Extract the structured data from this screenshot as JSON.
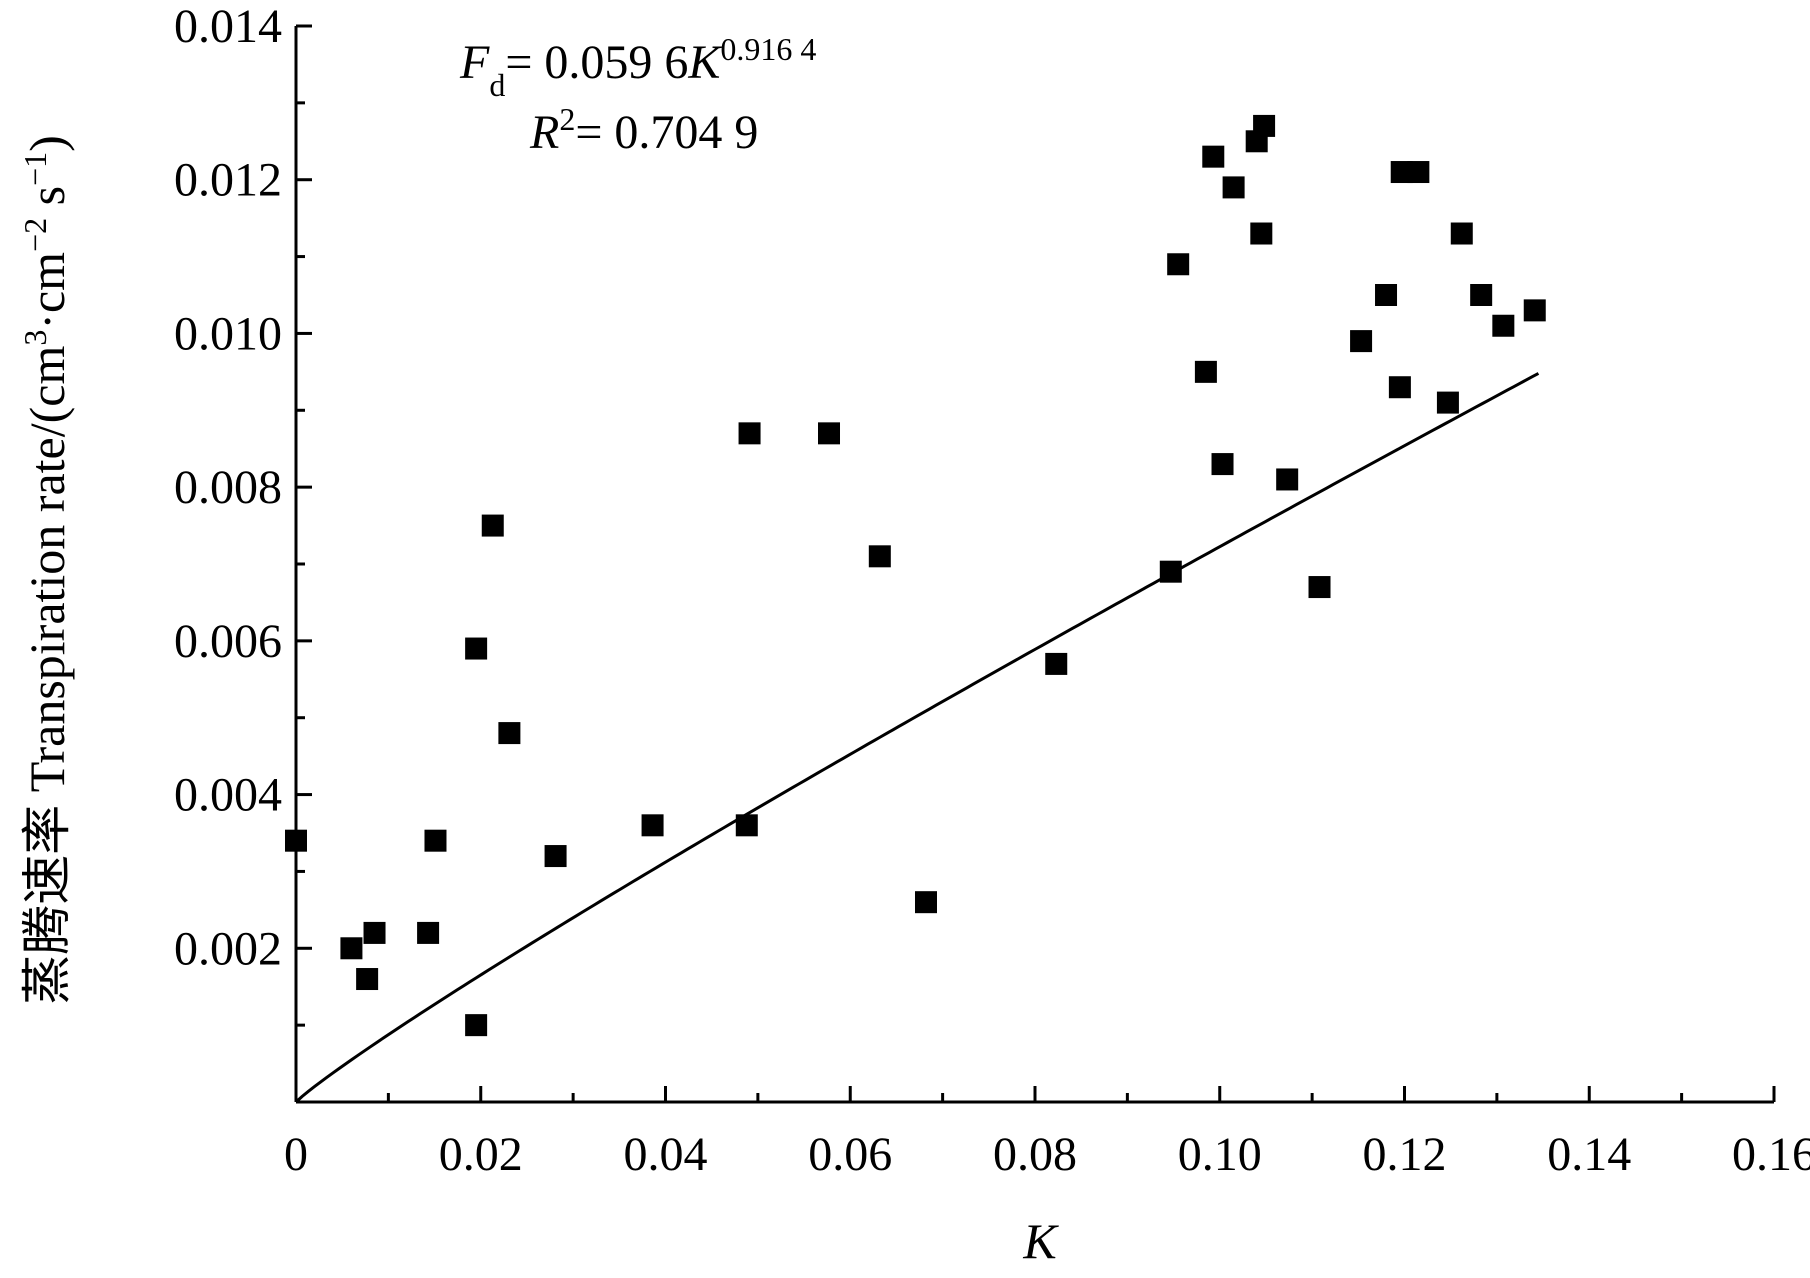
{
  "chart_data": {
    "type": "scatter",
    "xlabel": "K",
    "ylabel": "蒸腾速率 Transpiration rate/(cm³·cm⁻² s⁻¹)",
    "xlim": [
      0,
      0.16
    ],
    "ylim": [
      0,
      0.014
    ],
    "x_ticks": [
      "0",
      "0.02",
      "0.04",
      "0.06",
      "0.08",
      "0.10",
      "0.12",
      "0.14",
      "0.16"
    ],
    "y_ticks": [
      "0.002",
      "0.004",
      "0.006",
      "0.008",
      "0.010",
      "0.012",
      "0.014"
    ],
    "grid": false,
    "annotations": {
      "equation": "Fd = 0.059 6K^0.916 4",
      "r_squared": "R² = 0.704 9"
    },
    "fit": {
      "type": "power",
      "a": 0.0596,
      "b": 0.9164,
      "x_range": [
        0,
        0.1345
      ]
    },
    "points": [
      {
        "x": 0.0,
        "y": 0.0034
      },
      {
        "x": 0.006,
        "y": 0.002
      },
      {
        "x": 0.0077,
        "y": 0.0016
      },
      {
        "x": 0.0085,
        "y": 0.0022
      },
      {
        "x": 0.0143,
        "y": 0.0022
      },
      {
        "x": 0.0151,
        "y": 0.0034
      },
      {
        "x": 0.0195,
        "y": 0.001
      },
      {
        "x": 0.0195,
        "y": 0.0059
      },
      {
        "x": 0.0213,
        "y": 0.0075
      },
      {
        "x": 0.0231,
        "y": 0.0048
      },
      {
        "x": 0.0281,
        "y": 0.0032
      },
      {
        "x": 0.0386,
        "y": 0.0036
      },
      {
        "x": 0.0488,
        "y": 0.0036
      },
      {
        "x": 0.0491,
        "y": 0.0087
      },
      {
        "x": 0.0577,
        "y": 0.0087
      },
      {
        "x": 0.0632,
        "y": 0.0071
      },
      {
        "x": 0.0682,
        "y": 0.0026
      },
      {
        "x": 0.0823,
        "y": 0.0057
      },
      {
        "x": 0.0947,
        "y": 0.0069
      },
      {
        "x": 0.0955,
        "y": 0.0109
      },
      {
        "x": 0.0985,
        "y": 0.0095
      },
      {
        "x": 0.0993,
        "y": 0.0123
      },
      {
        "x": 0.1003,
        "y": 0.0083
      },
      {
        "x": 0.1015,
        "y": 0.0119
      },
      {
        "x": 0.104,
        "y": 0.0125
      },
      {
        "x": 0.1045,
        "y": 0.0113
      },
      {
        "x": 0.1048,
        "y": 0.0127
      },
      {
        "x": 0.1073,
        "y": 0.0081
      },
      {
        "x": 0.1108,
        "y": 0.0067
      },
      {
        "x": 0.1153,
        "y": 0.0099
      },
      {
        "x": 0.118,
        "y": 0.0105
      },
      {
        "x": 0.1195,
        "y": 0.0093
      },
      {
        "x": 0.1197,
        "y": 0.0121
      },
      {
        "x": 0.1215,
        "y": 0.0121
      },
      {
        "x": 0.1247,
        "y": 0.0091
      },
      {
        "x": 0.1262,
        "y": 0.0113
      },
      {
        "x": 0.1283,
        "y": 0.0105
      },
      {
        "x": 0.1307,
        "y": 0.0101
      },
      {
        "x": 0.1341,
        "y": 0.0103
      }
    ]
  }
}
